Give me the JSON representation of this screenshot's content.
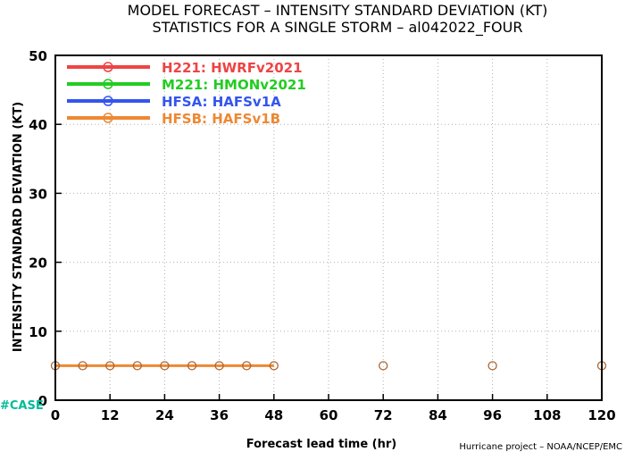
{
  "chart_data": {
    "type": "line",
    "title": "MODEL FORECAST – INTENSITY STANDARD DEVIATION (KT)",
    "subtitle": "STATISTICS FOR A SINGLE STORM – al042022_FOUR",
    "xlabel": "Forecast lead time (hr)",
    "ylabel": "INTENSITY STANDARD DEVIATION (KT)",
    "xlim": [
      0,
      120
    ],
    "ylim": [
      0,
      50
    ],
    "xticks": [
      "0",
      "12",
      "24",
      "36",
      "48",
      "60",
      "72",
      "84",
      "96",
      "108",
      "120"
    ],
    "yticks": [
      "0",
      "10",
      "20",
      "30",
      "40",
      "50"
    ],
    "grid": true,
    "legend_position": "top-left",
    "series": [
      {
        "name": "H221: HWRFv2021",
        "color": "#ee4444",
        "x": [],
        "y": []
      },
      {
        "name": "M221: HMONv2021",
        "color": "#22cc22",
        "x": [],
        "y": []
      },
      {
        "name": "HFSA: HAFSv1A",
        "color": "#3355ee",
        "x": [],
        "y": []
      },
      {
        "name": "HFSB: HAFSv1B",
        "color": "#ee8833",
        "x": [
          0,
          6,
          12,
          18,
          24,
          30,
          36,
          42,
          48
        ],
        "y": [
          5,
          5,
          5,
          5,
          5,
          5,
          5,
          5,
          5
        ]
      }
    ],
    "unconnected_points": {
      "x": [
        72,
        96,
        120
      ],
      "y": [
        5,
        5,
        5
      ],
      "color": "#aa6633"
    },
    "marker_edge_color": "#aa6633"
  },
  "case_label": "#CASE",
  "case_color": "#00bb99",
  "footer": "Hurricane project – NOAA/NCEP/EMC"
}
